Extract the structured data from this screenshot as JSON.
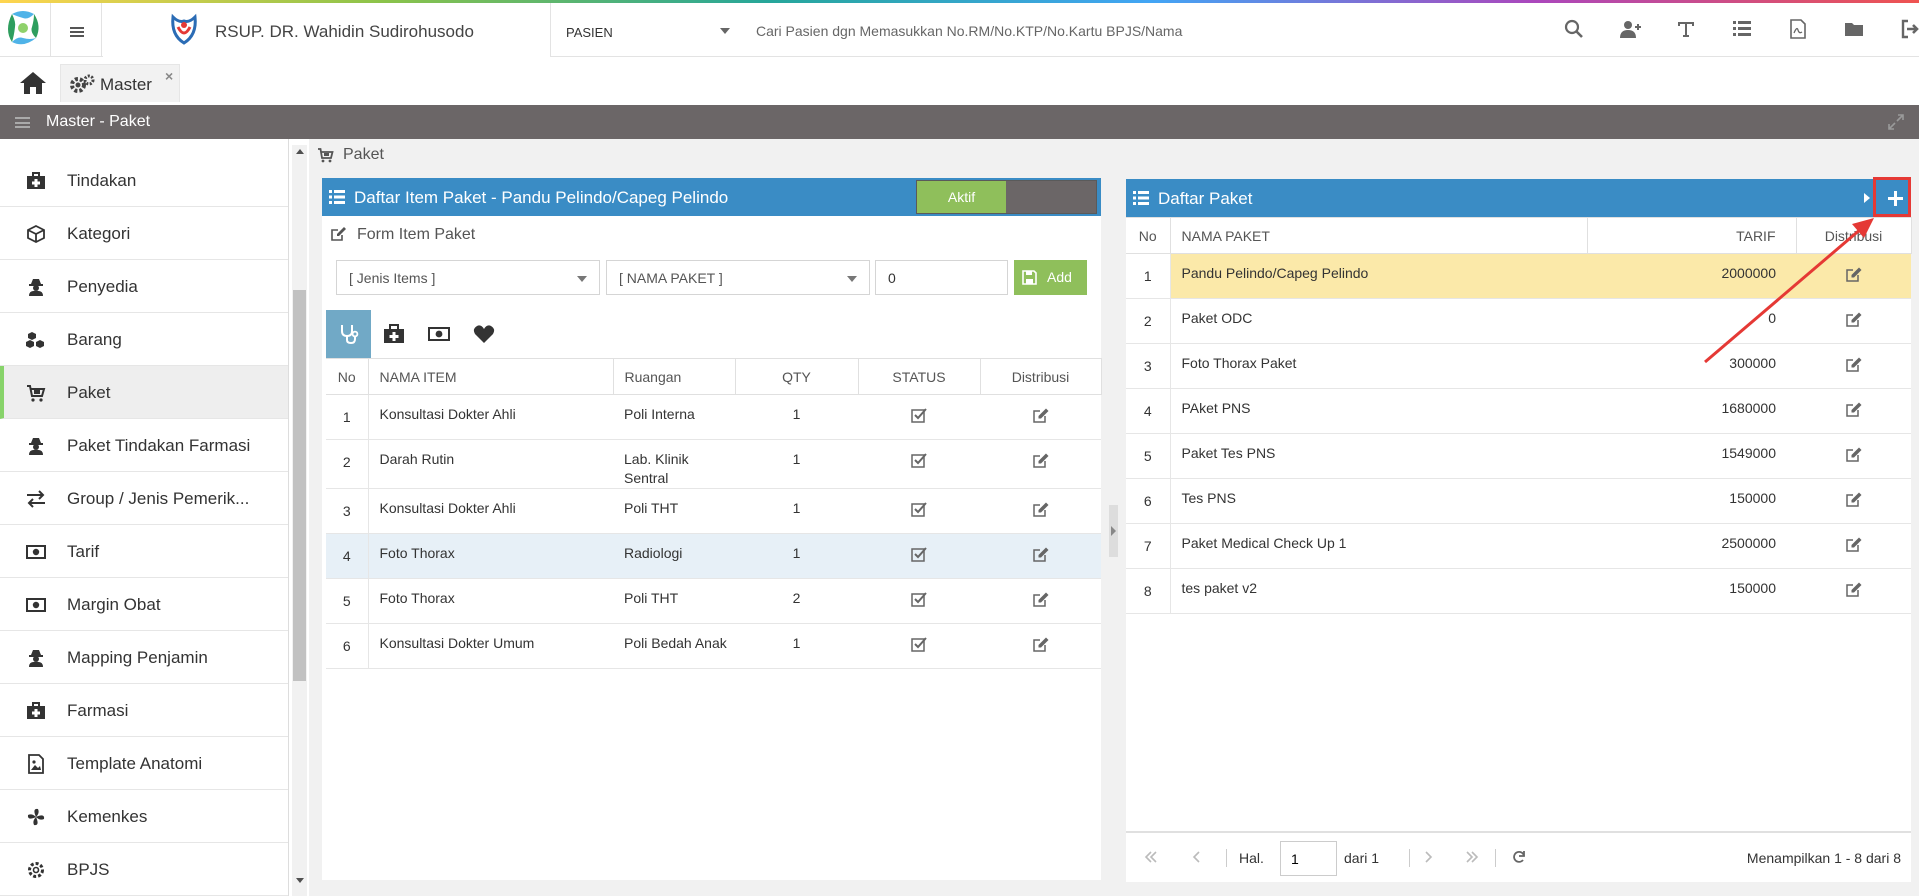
{
  "header": {
    "hospital_name": "RSUP. DR. Wahidin Sudirohusodo",
    "patient_type": "PASIEN",
    "search_placeholder": "Cari Pasien dgn Memasukkan No.RM/No.KTP/No.Kartu BPJS/Nama",
    "icons": [
      "search-icon",
      "add-user-icon",
      "text-icon",
      "list-icon",
      "pdf-file-icon",
      "folder-icon",
      "logout-icon"
    ]
  },
  "tabs": {
    "master_label": "Master",
    "close_symbol": "×"
  },
  "page_title": "Master - Paket",
  "sidebar": {
    "items": [
      {
        "label": "Tindakan",
        "icon": "medkit-icon"
      },
      {
        "label": "Kategori",
        "icon": "cube-icon"
      },
      {
        "label": "Penyedia",
        "icon": "user-secret-icon"
      },
      {
        "label": "Barang",
        "icon": "cubes-icon"
      },
      {
        "label": "Paket",
        "icon": "cart-icon",
        "active": true
      },
      {
        "label": "Paket Tindakan Farmasi",
        "icon": "user-secret-icon"
      },
      {
        "label": "Group / Jenis Pemerik...",
        "icon": "exchange-icon"
      },
      {
        "label": "Tarif",
        "icon": "money-icon"
      },
      {
        "label": "Margin Obat",
        "icon": "money-icon"
      },
      {
        "label": "Mapping Penjamin",
        "icon": "user-secret-icon"
      },
      {
        "label": "Farmasi",
        "icon": "medkit-icon"
      },
      {
        "label": "Template Anatomi",
        "icon": "image-file-icon"
      },
      {
        "label": "Kemenkes",
        "icon": "pinwheel-icon"
      },
      {
        "label": "BPJS",
        "icon": "cog-icon"
      }
    ]
  },
  "breadcrumb": "Paket",
  "left_panel": {
    "title": "Daftar Item Paket - Pandu Pelindo/Capeg Pelindo",
    "toggle_on_label": "Aktif",
    "form_label": "Form Item Paket",
    "jenis_select": "[ Jenis Items ]",
    "paket_select": "[ NAMA PAKET ]",
    "qty_value": "0",
    "add_label": "Add",
    "columns": [
      "No",
      "NAMA ITEM",
      "Ruangan",
      "QTY",
      "STATUS",
      "Distribusi"
    ],
    "rows": [
      {
        "no": "1",
        "item": "Konsultasi Dokter Ahli",
        "ruangan": "Poli Interna",
        "qty": "1"
      },
      {
        "no": "2",
        "item": "Darah Rutin",
        "ruangan": "Lab. Klinik Sentral",
        "qty": "1"
      },
      {
        "no": "3",
        "item": "Konsultasi Dokter Ahli",
        "ruangan": "Poli THT",
        "qty": "1"
      },
      {
        "no": "4",
        "item": "Foto Thorax",
        "ruangan": "Radiologi",
        "qty": "1"
      },
      {
        "no": "5",
        "item": "Foto Thorax",
        "ruangan": "Poli THT",
        "qty": "2"
      },
      {
        "no": "6",
        "item": "Konsultasi Dokter Umum",
        "ruangan": "Poli Bedah Anak",
        "qty": "1"
      }
    ]
  },
  "right_panel": {
    "title": "Daftar Paket",
    "columns": [
      "No",
      "NAMA PAKET",
      "TARIF",
      "Distribusi"
    ],
    "rows": [
      {
        "no": "1",
        "nama": "Pandu Pelindo/Capeg Pelindo",
        "tarif": "2000000"
      },
      {
        "no": "2",
        "nama": "Paket ODC",
        "tarif": "0"
      },
      {
        "no": "3",
        "nama": "Foto Thorax Paket",
        "tarif": "300000"
      },
      {
        "no": "4",
        "nama": "PAket PNS",
        "tarif": "1680000"
      },
      {
        "no": "5",
        "nama": "Paket Tes PNS",
        "tarif": "1549000"
      },
      {
        "no": "6",
        "nama": "Tes PNS",
        "tarif": "150000"
      },
      {
        "no": "7",
        "nama": "Paket Medical Check Up 1",
        "tarif": "2500000"
      },
      {
        "no": "8",
        "nama": "tes paket v2",
        "tarif": "150000"
      }
    ],
    "pager": {
      "hal_label": "Hal.",
      "page": "1",
      "dari_label": "dari 1",
      "info": "Menampilkan 1 - 8 dari 8"
    }
  },
  "colors": {
    "panel_header": "#3a8cc5",
    "title_bar": "#6b6667",
    "active_green": "#8fbf5b",
    "selected_row": "#fbe9a9",
    "annotation_red": "#e53935"
  }
}
